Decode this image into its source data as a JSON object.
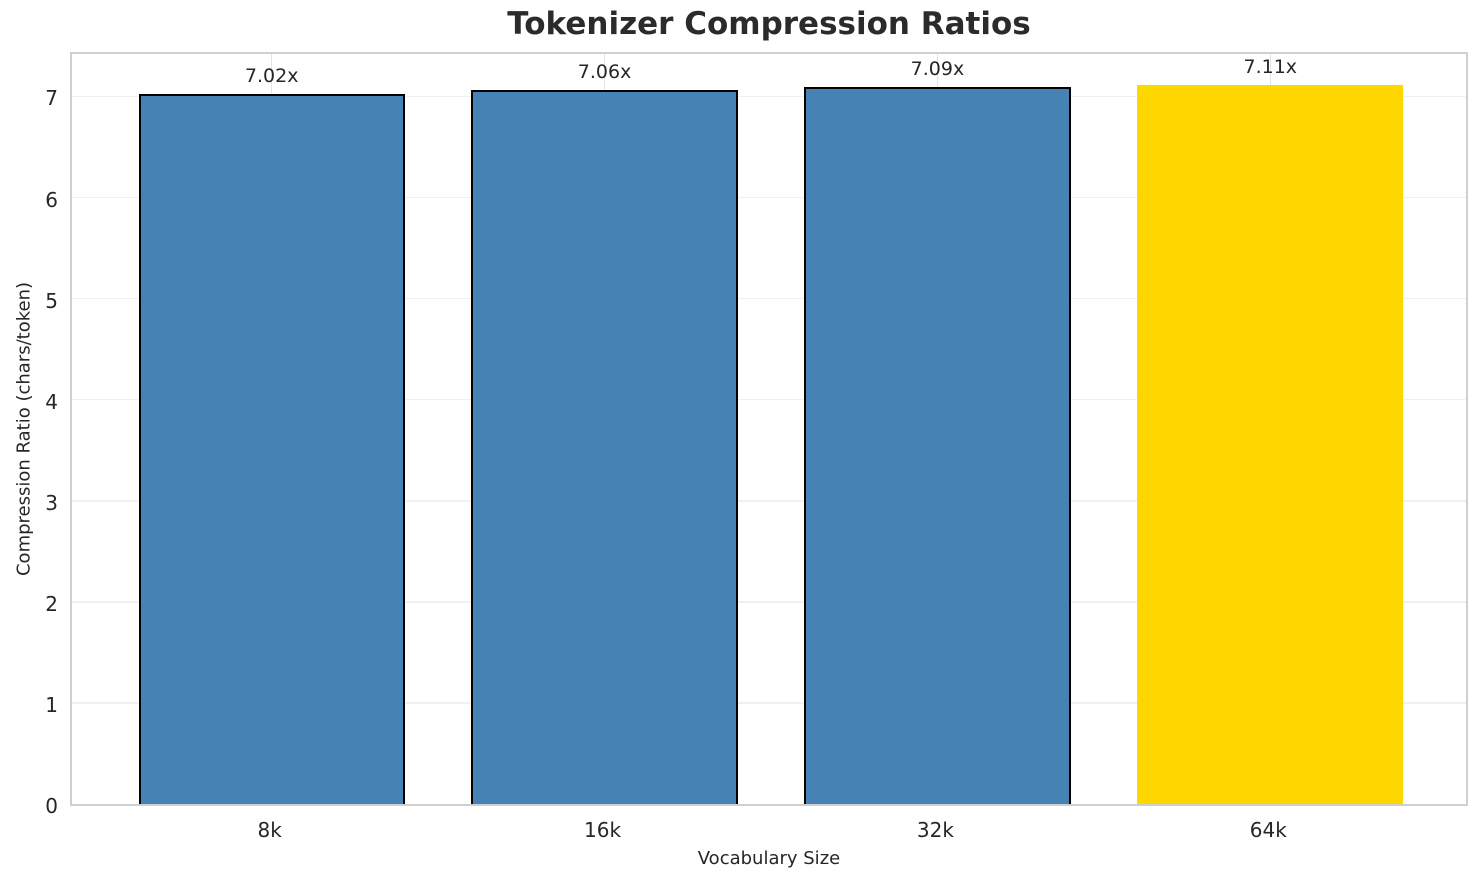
{
  "chart_data": {
    "type": "bar",
    "title": "Tokenizer Compression Ratios",
    "xlabel": "Vocabulary Size",
    "ylabel": "Compression Ratio (chars/token)",
    "categories": [
      "8k",
      "16k",
      "32k",
      "64k"
    ],
    "values": [
      7.02,
      7.06,
      7.09,
      7.11
    ],
    "bar_labels": [
      "7.02x",
      "7.06x",
      "7.09x",
      "7.11x"
    ],
    "ylim": [
      0,
      7.46
    ],
    "xlim": [
      -0.6,
      3.6
    ],
    "yticks": [
      0,
      1,
      2,
      3,
      4,
      5,
      6,
      7
    ],
    "bar_width_fraction": 0.8,
    "grid": true,
    "legend": "none",
    "highlight_index": 3,
    "colors": {
      "bar": "#4682b4",
      "highlight": "#ffd700",
      "bar_edge": "#000000",
      "hgrid_line": "#f0f0f0",
      "vgrid_line": "#e3e3e3",
      "spine": "#cfcfcf",
      "text": "#262626",
      "title_text": "#2b2b2b",
      "background": "#ffffff"
    }
  }
}
